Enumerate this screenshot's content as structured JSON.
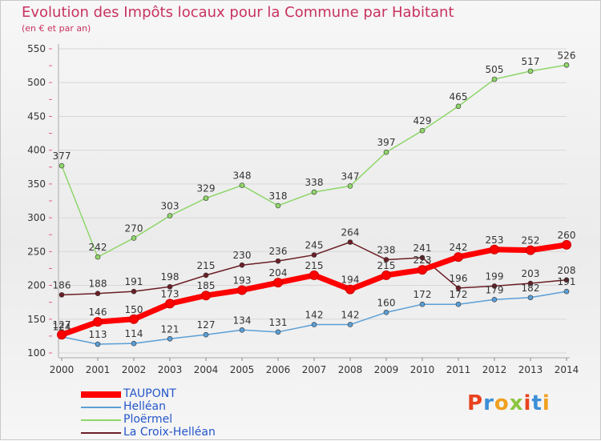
{
  "title": "Evolution des Impôts locaux pour la Commune par Habitant",
  "subtitle": "(en € et par an)",
  "logo": {
    "letters": [
      "P",
      "r",
      "o",
      "x",
      "i",
      "t",
      "i"
    ],
    "colors": [
      "#e8431f",
      "#3c8fd6",
      "#f0a020",
      "#8bc53f",
      "#e8431f",
      "#3c8fd6",
      "#f0a020"
    ]
  },
  "chart_data": {
    "type": "line",
    "title": "Evolution des Impôts locaux pour la Commune par Habitant",
    "subtitle": "(en € et par an)",
    "xlabel": "",
    "ylabel": "",
    "x": [
      2000,
      2001,
      2002,
      2003,
      2004,
      2005,
      2006,
      2007,
      2008,
      2009,
      2010,
      2011,
      2012,
      2013,
      2014
    ],
    "ylim": [
      100,
      550
    ],
    "yticks": [
      100,
      150,
      200,
      250,
      300,
      350,
      400,
      450,
      500,
      550
    ],
    "grid": "horizontal",
    "legend_position": "bottom-left",
    "series": [
      {
        "name": "Ploërmel",
        "color": "#8fd66a",
        "values": [
          377,
          242,
          270,
          303,
          329,
          348,
          318,
          338,
          347,
          397,
          429,
          465,
          505,
          517,
          526
        ],
        "labels": [
          "377",
          "242",
          "270",
          "303",
          "329",
          "348",
          "318",
          "338",
          "347",
          "397",
          "429",
          "465",
          "505",
          "517",
          "526"
        ]
      },
      {
        "name": "La Croix-Helléan",
        "color": "#6b1e26",
        "values": [
          186,
          188,
          191,
          198,
          215,
          230,
          236,
          245,
          264,
          238,
          241,
          196,
          199,
          203,
          208
        ],
        "labels": [
          "186",
          "188",
          "191",
          "198",
          "215",
          "230",
          "236",
          "245",
          "264",
          "238",
          "241",
          "196",
          "199",
          "203",
          "208"
        ]
      },
      {
        "name": "Helléan",
        "color": "#5b9fd6",
        "values": [
          124,
          113,
          114,
          121,
          127,
          134,
          131,
          142,
          142,
          160,
          172,
          172,
          179,
          182,
          191
        ],
        "labels": [
          "124",
          "113",
          "114",
          "121",
          "127",
          "134",
          "131",
          "142",
          "142",
          "160",
          "172",
          "172",
          "179",
          "182",
          "191"
        ]
      },
      {
        "name": "TAUPONT",
        "color": "#ff0000",
        "values": [
          127,
          146,
          150,
          173,
          185,
          193,
          204,
          215,
          194,
          215,
          223,
          242,
          253,
          252,
          260
        ],
        "labels": [
          "127",
          "146",
          "150",
          "173",
          "185",
          "193",
          "204",
          "215",
          "194",
          "215",
          "223",
          "242",
          "253",
          "252",
          "260"
        ]
      }
    ],
    "legend": [
      {
        "name": "TAUPONT",
        "color": "#ff0000",
        "text_color": "#2456c8"
      },
      {
        "name": "Helléan",
        "color": "#5b9fd6",
        "text_color": "#2456c8"
      },
      {
        "name": "Ploërmel",
        "color": "#8fd66a",
        "text_color": "#2456c8"
      },
      {
        "name": "La Croix-Helléan",
        "color": "#6b1e26",
        "text_color": "#2456c8"
      }
    ]
  }
}
